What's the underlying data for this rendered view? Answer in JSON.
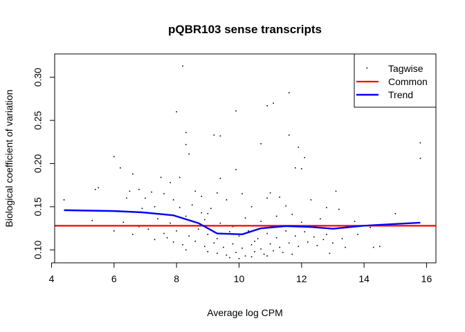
{
  "chart_data": {
    "type": "scatter",
    "title": "pQBR103 sense transcripts",
    "xlabel": "Average log CPM",
    "ylabel": "Biological coefficient of variation",
    "xlim": [
      4.1,
      16.3
    ],
    "ylim": [
      0.085,
      0.327
    ],
    "x_ticks": [
      4,
      6,
      8,
      10,
      12,
      14,
      16
    ],
    "y_ticks": [
      0.1,
      0.15,
      0.2,
      0.25,
      0.3
    ],
    "x_tick_labels": [
      "4",
      "6",
      "8",
      "10",
      "12",
      "14",
      "16"
    ],
    "y_tick_labels": [
      "0.10",
      "0.15",
      "0.20",
      "0.25",
      "0.30"
    ],
    "grid": false,
    "legend": {
      "position": "top-right",
      "entries": [
        {
          "label": "Tagwise",
          "kind": "point",
          "color": "#000000"
        },
        {
          "label": "Common",
          "kind": "line",
          "color": "#ff0000"
        },
        {
          "label": "Trend",
          "kind": "line",
          "color": "#0000ff"
        }
      ]
    },
    "series": [
      {
        "name": "Tagwise",
        "kind": "points",
        "color": "#000000",
        "points": [
          [
            8.2,
            0.313
          ],
          [
            11.6,
            0.282
          ],
          [
            11.1,
            0.27
          ],
          [
            10.9,
            0.267
          ],
          [
            9.9,
            0.261
          ],
          [
            8.0,
            0.26
          ],
          [
            11.6,
            0.233
          ],
          [
            9.2,
            0.233
          ],
          [
            9.4,
            0.232
          ],
          [
            8.3,
            0.236
          ],
          [
            8.3,
            0.222
          ],
          [
            10.7,
            0.223
          ],
          [
            15.8,
            0.224
          ],
          [
            8.4,
            0.211
          ],
          [
            6.0,
            0.208
          ],
          [
            12.1,
            0.207
          ],
          [
            15.8,
            0.206
          ],
          [
            11.9,
            0.219
          ],
          [
            6.2,
            0.195
          ],
          [
            11.8,
            0.195
          ],
          [
            12.0,
            0.194
          ],
          [
            9.9,
            0.193
          ],
          [
            6.6,
            0.188
          ],
          [
            7.5,
            0.184
          ],
          [
            8.1,
            0.184
          ],
          [
            9.4,
            0.183
          ],
          [
            7.8,
            0.178
          ],
          [
            5.5,
            0.172
          ],
          [
            5.4,
            0.17
          ],
          [
            6.5,
            0.168
          ],
          [
            6.8,
            0.17
          ],
          [
            7.2,
            0.167
          ],
          [
            7.6,
            0.165
          ],
          [
            8.6,
            0.168
          ],
          [
            9.3,
            0.166
          ],
          [
            10.1,
            0.165
          ],
          [
            11.0,
            0.166
          ],
          [
            13.1,
            0.168
          ],
          [
            4.4,
            0.158
          ],
          [
            6.4,
            0.16
          ],
          [
            7.0,
            0.16
          ],
          [
            7.9,
            0.158
          ],
          [
            8.8,
            0.162
          ],
          [
            9.6,
            0.158
          ],
          [
            10.9,
            0.16
          ],
          [
            11.3,
            0.161
          ],
          [
            12.3,
            0.158
          ],
          [
            6.1,
            0.145
          ],
          [
            6.9,
            0.148
          ],
          [
            7.3,
            0.15
          ],
          [
            8.1,
            0.149
          ],
          [
            8.5,
            0.152
          ],
          [
            9.1,
            0.148
          ],
          [
            10.4,
            0.15
          ],
          [
            11.5,
            0.151
          ],
          [
            12.8,
            0.149
          ],
          [
            13.2,
            0.147
          ],
          [
            15.0,
            0.142
          ],
          [
            5.3,
            0.134
          ],
          [
            5.8,
            0.128
          ],
          [
            6.3,
            0.132
          ],
          [
            6.8,
            0.127
          ],
          [
            7.4,
            0.136
          ],
          [
            7.8,
            0.131
          ],
          [
            8.3,
            0.139
          ],
          [
            8.9,
            0.135
          ],
          [
            9.4,
            0.131
          ],
          [
            10.2,
            0.137
          ],
          [
            10.7,
            0.133
          ],
          [
            11.2,
            0.139
          ],
          [
            12.0,
            0.132
          ],
          [
            12.6,
            0.136
          ],
          [
            13.7,
            0.133
          ],
          [
            14.2,
            0.126
          ],
          [
            6.0,
            0.122
          ],
          [
            6.6,
            0.118
          ],
          [
            7.1,
            0.124
          ],
          [
            7.6,
            0.119
          ],
          [
            8.0,
            0.122
          ],
          [
            8.4,
            0.116
          ],
          [
            8.7,
            0.124
          ],
          [
            9.0,
            0.118
          ],
          [
            9.3,
            0.113
          ],
          [
            9.7,
            0.121
          ],
          [
            10.0,
            0.116
          ],
          [
            10.3,
            0.122
          ],
          [
            10.6,
            0.113
          ],
          [
            10.9,
            0.119
          ],
          [
            11.2,
            0.114
          ],
          [
            11.5,
            0.122
          ],
          [
            11.8,
            0.116
          ],
          [
            12.1,
            0.121
          ],
          [
            12.4,
            0.115
          ],
          [
            12.8,
            0.118
          ],
          [
            13.3,
            0.113
          ],
          [
            13.8,
            0.118
          ],
          [
            7.9,
            0.109
          ],
          [
            8.2,
            0.106
          ],
          [
            8.6,
            0.11
          ],
          [
            8.9,
            0.104
          ],
          [
            9.2,
            0.108
          ],
          [
            9.5,
            0.103
          ],
          [
            9.8,
            0.107
          ],
          [
            10.1,
            0.102
          ],
          [
            10.4,
            0.106
          ],
          [
            10.7,
            0.101
          ],
          [
            11.0,
            0.107
          ],
          [
            11.3,
            0.103
          ],
          [
            11.6,
            0.108
          ],
          [
            11.9,
            0.104
          ],
          [
            12.2,
            0.109
          ],
          [
            12.5,
            0.105
          ],
          [
            13.0,
            0.108
          ],
          [
            13.4,
            0.103
          ],
          [
            14.3,
            0.103
          ],
          [
            14.5,
            0.104
          ],
          [
            9.0,
            0.098
          ],
          [
            9.3,
            0.096
          ],
          [
            9.6,
            0.094
          ],
          [
            9.9,
            0.097
          ],
          [
            10.2,
            0.093
          ],
          [
            10.5,
            0.098
          ],
          [
            10.8,
            0.095
          ],
          [
            11.1,
            0.099
          ],
          [
            11.4,
            0.097
          ],
          [
            9.7,
            0.091
          ],
          [
            10.0,
            0.09
          ],
          [
            10.4,
            0.092
          ],
          [
            10.9,
            0.093
          ],
          [
            11.7,
            0.095
          ],
          [
            12.9,
            0.096
          ],
          [
            7.3,
            0.112
          ],
          [
            7.7,
            0.114
          ],
          [
            8.5,
            0.128
          ],
          [
            9.8,
            0.127
          ],
          [
            11.0,
            0.126
          ],
          [
            12.3,
            0.127
          ],
          [
            11.7,
            0.141
          ],
          [
            9.0,
            0.142
          ],
          [
            8.8,
            0.143
          ],
          [
            10.5,
            0.11
          ],
          [
            8.3,
            0.1
          ],
          [
            12.7,
            0.112
          ]
        ]
      },
      {
        "name": "Common",
        "kind": "hline",
        "color": "#ff0000",
        "y": 0.128
      },
      {
        "name": "Trend",
        "kind": "line",
        "color": "#0000ff",
        "x": [
          4.4,
          5.2,
          6.0,
          6.9,
          7.9,
          8.7,
          9.3,
          10.1,
          10.7,
          11.5,
          12.3,
          13.0,
          14.0,
          15.0,
          15.8
        ],
        "y": [
          0.146,
          0.1455,
          0.145,
          0.1435,
          0.14,
          0.131,
          0.119,
          0.118,
          0.125,
          0.1275,
          0.1265,
          0.1245,
          0.128,
          0.13,
          0.1315
        ]
      }
    ]
  }
}
